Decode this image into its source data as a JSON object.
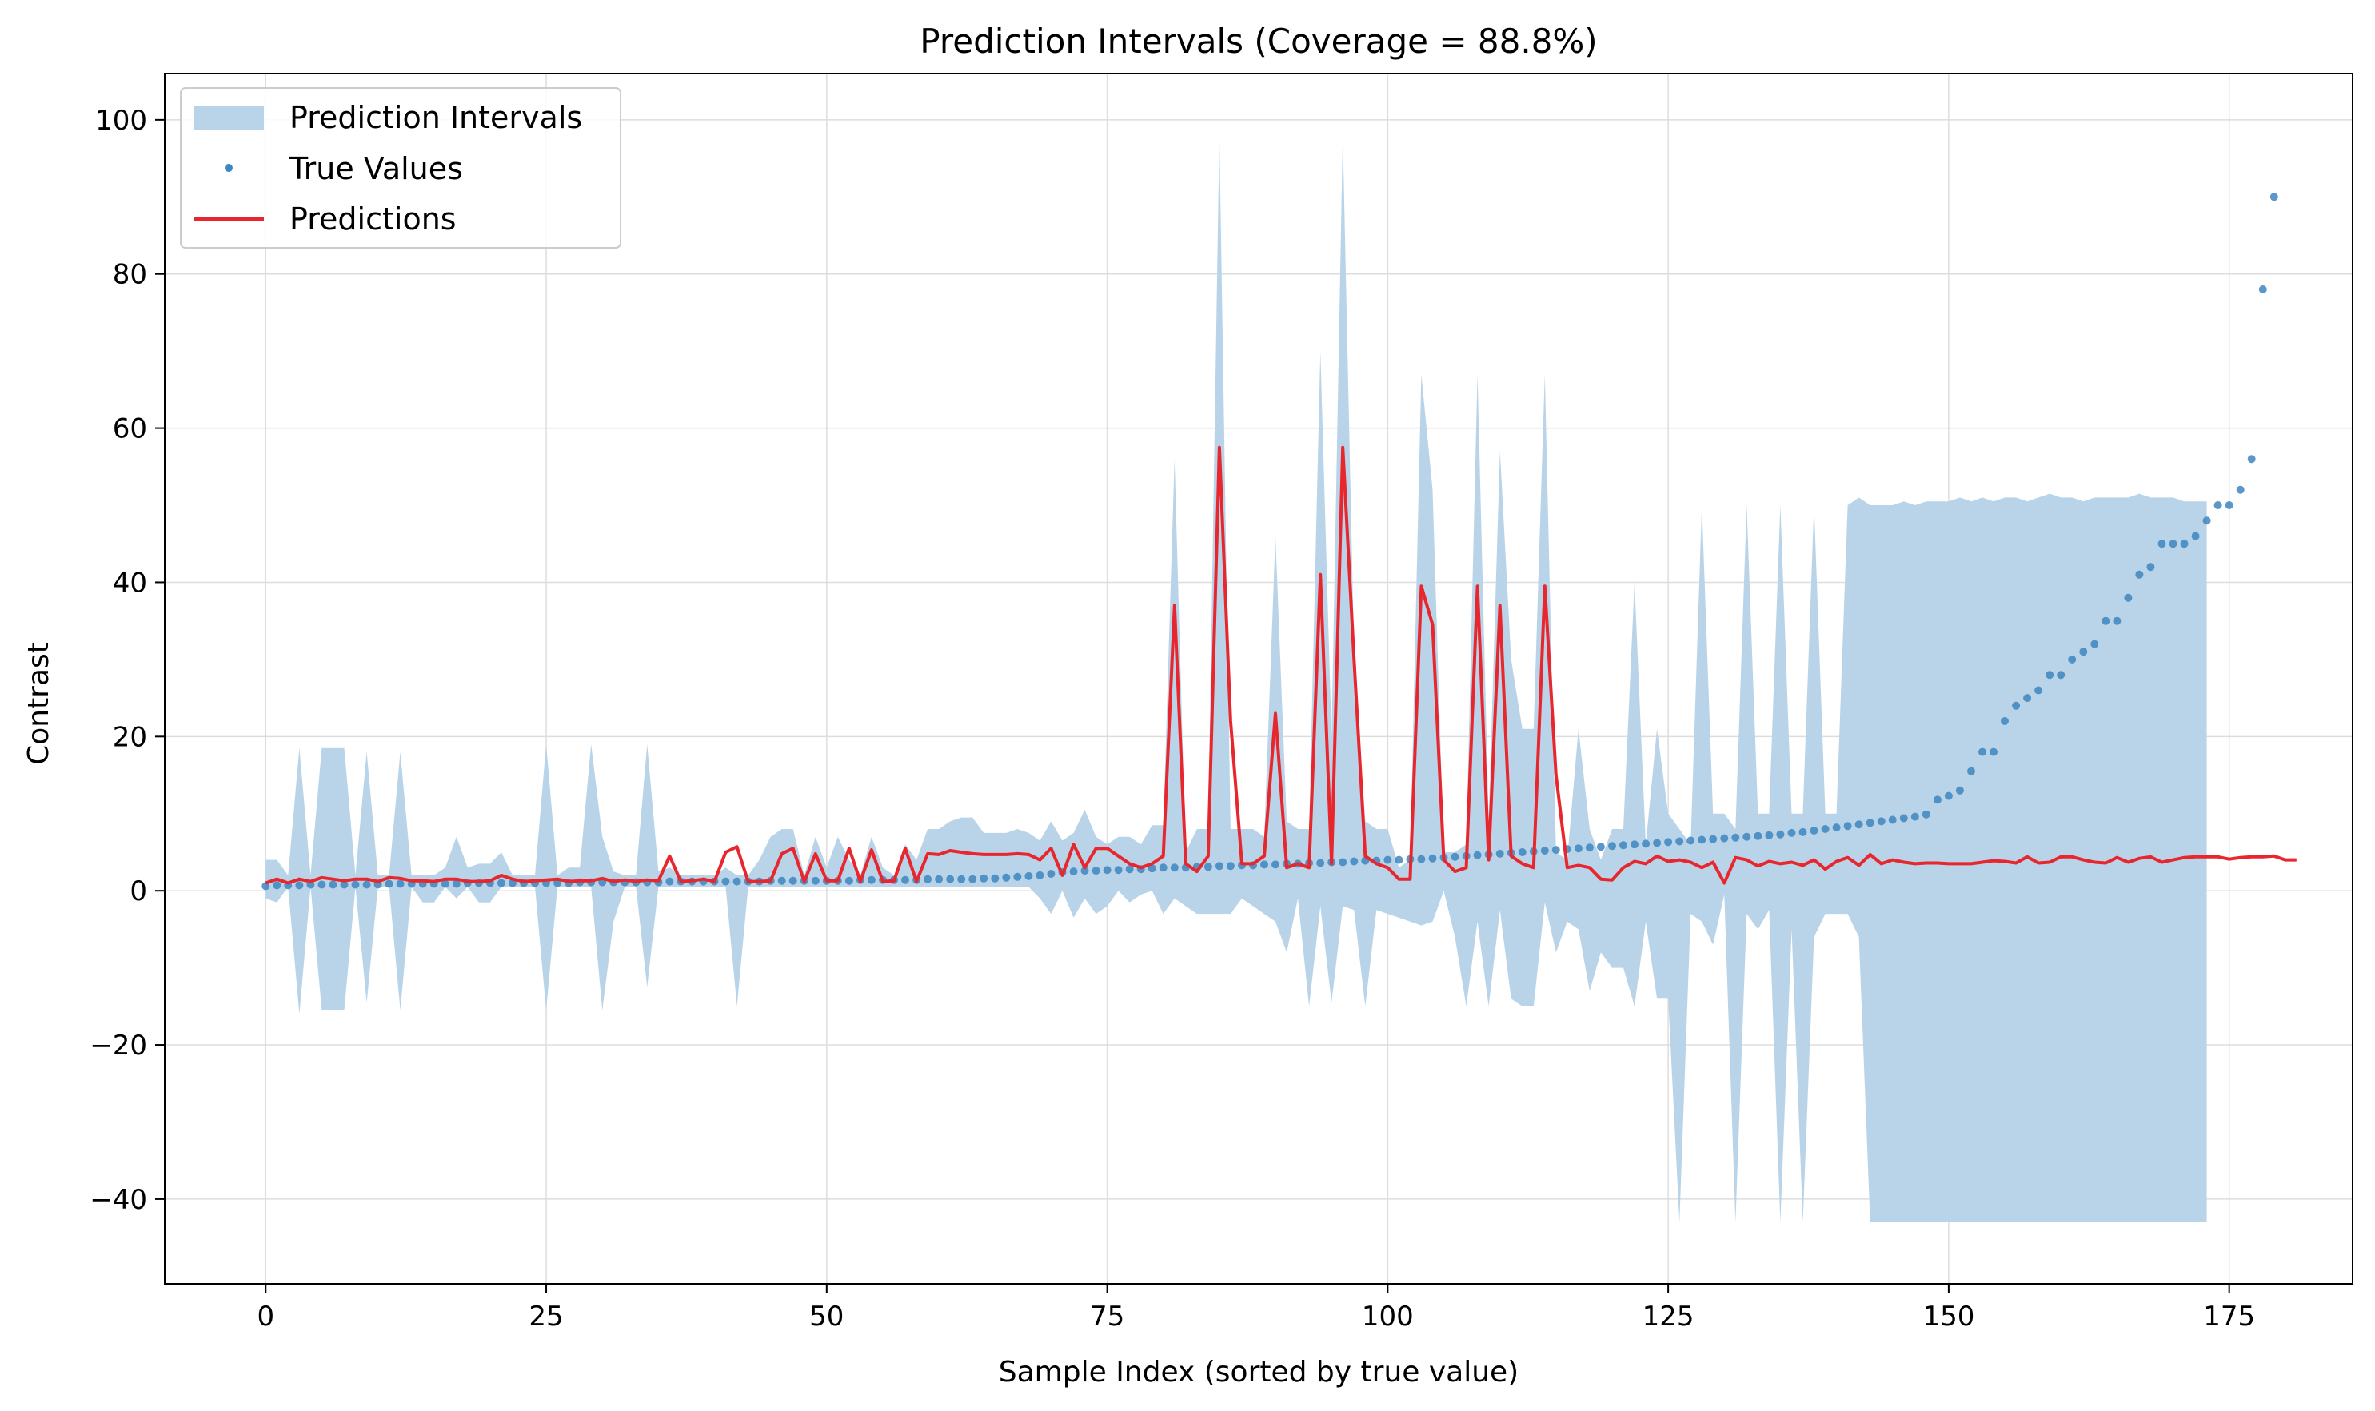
{
  "chart_data": {
    "type": "line",
    "title": "Prediction Intervals (Coverage = 88.8%)",
    "xlabel": "Sample Index (sorted by true value)",
    "ylabel": "Contrast",
    "xlim": [
      -9,
      186
    ],
    "ylim": [
      -51,
      106
    ],
    "x_ticks": [
      0,
      25,
      50,
      75,
      100,
      125,
      150,
      175
    ],
    "y_ticks": [
      -40,
      -20,
      0,
      20,
      40,
      60,
      80,
      100
    ],
    "x_tick_labels": [
      "0",
      "25",
      "50",
      "75",
      "100",
      "125",
      "150",
      "175"
    ],
    "y_tick_labels": [
      "−40",
      "−20",
      "0",
      "20",
      "40",
      "60",
      "80",
      "100"
    ],
    "grid": true,
    "legend_position": "top-left",
    "series": [
      {
        "name": "Prediction Intervals",
        "kind": "band",
        "color": "#b9d4e8",
        "lower": [
          -1,
          -1.5,
          0.5,
          -16,
          0.5,
          -15.5,
          -15.5,
          -15.5,
          0.5,
          -14.5,
          0.5,
          0.5,
          -15.5,
          0.5,
          -1.5,
          -1.5,
          0.5,
          -1,
          0.5,
          -1.5,
          -1.5,
          0.5,
          0.5,
          0.5,
          0.5,
          -15.5,
          0.5,
          0.5,
          0.5,
          0.5,
          -15.5,
          -4,
          0.5,
          0.5,
          -12.5,
          0.5,
          0.5,
          0.5,
          0.5,
          0.5,
          0.5,
          0.5,
          -15,
          0.5,
          0.5,
          0.5,
          0.5,
          0.5,
          0.5,
          0.5,
          0.5,
          0.5,
          0.5,
          0.5,
          0.5,
          0.5,
          0.5,
          0.5,
          0.5,
          0.5,
          0.5,
          0.5,
          0.5,
          0.5,
          0.5,
          0.5,
          0.5,
          0.5,
          0.5,
          -1,
          -3,
          0,
          -3.5,
          -1,
          -3,
          -2,
          0,
          -1.5,
          -0.5,
          0,
          -3,
          -1,
          -2,
          -3,
          -3,
          -3,
          -3,
          -1,
          -2,
          -3,
          -4,
          -8,
          -1,
          -15,
          -2,
          -14.5,
          -2,
          -2.5,
          -15,
          -2.5,
          -3,
          -3.5,
          -4,
          -4.5,
          -4,
          0,
          -6,
          -15,
          -4,
          -15,
          -2.5,
          -14,
          -15,
          -15,
          -1.5,
          -8,
          -4,
          -5,
          -13,
          -8,
          -10,
          -10,
          -15,
          -4,
          -14,
          -14,
          -43,
          -3,
          -4,
          -7,
          -0.5,
          -43,
          -3,
          -5,
          -2.5,
          -43,
          -5,
          -43,
          -6,
          -3,
          -3,
          -3,
          -6,
          -43,
          -43,
          -43,
          -43,
          -43,
          -43,
          -43,
          -43,
          -43,
          -43,
          -43,
          -43,
          -43,
          -43,
          -43,
          -43,
          -43,
          -43,
          -43,
          -43,
          -43,
          -43,
          -43,
          -43,
          -43,
          -43,
          -43,
          -43,
          -43,
          -43,
          -43
        ],
        "upper": [
          4,
          4,
          2,
          18.5,
          2,
          18.5,
          18.5,
          18.5,
          2,
          18,
          2,
          2,
          18,
          2,
          2,
          2,
          3,
          7,
          3,
          3.5,
          3.5,
          5,
          2,
          2,
          2,
          19,
          2,
          3,
          3,
          19,
          7,
          2.5,
          2,
          2,
          19,
          2.5,
          3,
          2,
          2,
          2,
          2,
          3,
          2,
          2,
          4,
          7,
          8,
          8,
          2,
          7,
          3,
          7,
          4,
          2,
          7,
          3,
          2,
          6,
          4,
          8,
          8,
          9,
          9.5,
          9.5,
          7.5,
          7.5,
          7.5,
          8,
          7.5,
          6.5,
          9,
          6.5,
          7.5,
          10.5,
          7,
          6,
          7,
          7,
          6,
          8.5,
          8.5,
          56,
          5,
          8,
          8,
          98,
          8,
          8,
          8,
          7,
          46,
          9,
          8,
          8,
          70,
          20,
          98,
          31,
          9,
          8,
          8,
          3,
          4,
          67,
          52,
          5,
          5,
          6,
          67,
          9,
          57,
          30,
          21,
          21,
          67,
          5,
          4,
          21,
          8,
          4,
          8,
          8,
          40,
          6,
          21,
          10,
          8,
          6,
          50,
          10,
          10,
          8,
          50,
          10,
          10,
          50,
          10,
          10,
          50,
          10,
          10,
          50,
          51,
          50,
          50,
          50,
          50.5,
          50,
          50.5,
          50.5,
          50.5,
          51,
          50.5,
          51,
          50.5,
          51,
          51,
          50.5,
          51,
          51.5,
          51,
          51,
          50.5,
          51,
          51,
          51,
          51,
          51.5,
          51,
          51,
          51,
          50.5,
          50.5,
          50.5
        ]
      },
      {
        "name": "True Values",
        "kind": "points",
        "color": "#3e86bf",
        "values": [
          0.6,
          0.7,
          0.7,
          0.7,
          0.8,
          0.8,
          0.8,
          0.8,
          0.8,
          0.8,
          0.8,
          0.9,
          0.9,
          0.9,
          0.9,
          0.9,
          0.9,
          0.9,
          1.0,
          1.0,
          1.0,
          1.0,
          1.0,
          1.0,
          1.0,
          1.0,
          1.0,
          1.0,
          1.1,
          1.1,
          1.1,
          1.1,
          1.1,
          1.1,
          1.1,
          1.1,
          1.2,
          1.2,
          1.2,
          1.2,
          1.2,
          1.2,
          1.2,
          1.2,
          1.2,
          1.3,
          1.3,
          1.3,
          1.3,
          1.3,
          1.3,
          1.3,
          1.3,
          1.4,
          1.4,
          1.4,
          1.4,
          1.4,
          1.4,
          1.5,
          1.5,
          1.5,
          1.5,
          1.5,
          1.6,
          1.6,
          1.7,
          1.8,
          1.9,
          2.0,
          2.2,
          2.4,
          2.5,
          2.6,
          2.6,
          2.7,
          2.7,
          2.8,
          2.8,
          2.9,
          3.0,
          3.0,
          3.0,
          3.1,
          3.1,
          3.2,
          3.2,
          3.3,
          3.3,
          3.4,
          3.4,
          3.5,
          3.5,
          3.6,
          3.6,
          3.7,
          3.7,
          3.8,
          3.9,
          3.9,
          4.0,
          4.0,
          4.1,
          4.1,
          4.2,
          4.3,
          4.4,
          4.5,
          4.6,
          4.7,
          4.8,
          4.9,
          5.0,
          5.1,
          5.2,
          5.3,
          5.4,
          5.5,
          5.6,
          5.7,
          5.8,
          5.9,
          6.0,
          6.1,
          6.2,
          6.3,
          6.4,
          6.5,
          6.6,
          6.7,
          6.8,
          6.9,
          7.0,
          7.1,
          7.2,
          7.3,
          7.5,
          7.6,
          7.8,
          8.0,
          8.2,
          8.4,
          8.6,
          8.8,
          9.0,
          9.2,
          9.4,
          9.6,
          9.9,
          11.8,
          12.3,
          13.0,
          15.5,
          18.0,
          18.0,
          22.0,
          24.0,
          25.0,
          26.0,
          28.0,
          28.0,
          30.0,
          31.0,
          32.0,
          35.0,
          35.0,
          38.0,
          41.0,
          42.0,
          45.0,
          45.0,
          45.0,
          46.0,
          48.0,
          50.0,
          50.0,
          52.0,
          56.0,
          78.0,
          90.0
        ]
      },
      {
        "name": "Predictions",
        "kind": "line",
        "color": "#e8262d",
        "values": [
          1.0,
          1.5,
          1.0,
          1.5,
          1.2,
          1.7,
          1.5,
          1.3,
          1.5,
          1.5,
          1.2,
          1.7,
          1.6,
          1.3,
          1.3,
          1.2,
          1.5,
          1.5,
          1.2,
          1.2,
          1.3,
          2.0,
          1.5,
          1.2,
          1.3,
          1.4,
          1.5,
          1.2,
          1.3,
          1.3,
          1.6,
          1.2,
          1.4,
          1.2,
          1.4,
          1.3,
          4.5,
          1.2,
          1.3,
          1.5,
          1.2,
          5.0,
          5.7,
          1.2,
          1.2,
          1.3,
          4.8,
          5.5,
          1.2,
          4.8,
          1.3,
          1.3,
          5.5,
          1.2,
          5.3,
          1.2,
          1.3,
          5.5,
          1.2,
          4.8,
          4.7,
          5.2,
          5.0,
          4.8,
          4.7,
          4.7,
          4.7,
          4.8,
          4.7,
          4.0,
          5.5,
          2.0,
          6.0,
          3.0,
          5.5,
          5.5,
          4.5,
          3.5,
          3.0,
          3.5,
          4.5,
          37.0,
          3.5,
          2.5,
          4.5,
          57.5,
          22.0,
          3.5,
          3.5,
          4.5,
          23.0,
          3.0,
          3.5,
          3.0,
          41.0,
          3.5,
          57.5,
          30.0,
          4.5,
          3.5,
          3.0,
          1.5,
          1.5,
          39.5,
          34.5,
          4.0,
          2.5,
          3.0,
          39.5,
          4.0,
          37.0,
          4.5,
          3.5,
          3.0,
          39.5,
          15.0,
          3.0,
          3.3,
          3.0,
          1.5,
          1.4,
          3.0,
          3.8,
          3.5,
          4.5,
          3.8,
          4.0,
          3.7,
          3.0,
          3.7,
          1.0,
          4.3,
          4.0,
          3.2,
          3.8,
          3.5,
          3.7,
          3.3,
          4.0,
          2.8,
          3.8,
          4.3,
          3.3,
          4.7,
          3.5,
          4.0,
          3.7,
          3.5,
          3.6,
          3.6,
          3.5,
          3.5,
          3.5,
          3.7,
          3.9,
          3.8,
          3.6,
          4.4,
          3.6,
          3.7,
          4.4,
          4.4,
          4.0,
          3.7,
          3.6,
          4.3,
          3.7,
          4.2,
          4.4,
          3.7,
          4.0,
          4.3,
          4.4,
          4.4,
          4.4,
          4.1,
          4.3,
          4.4,
          4.4,
          4.5,
          4.0,
          4.0
        ]
      }
    ]
  }
}
